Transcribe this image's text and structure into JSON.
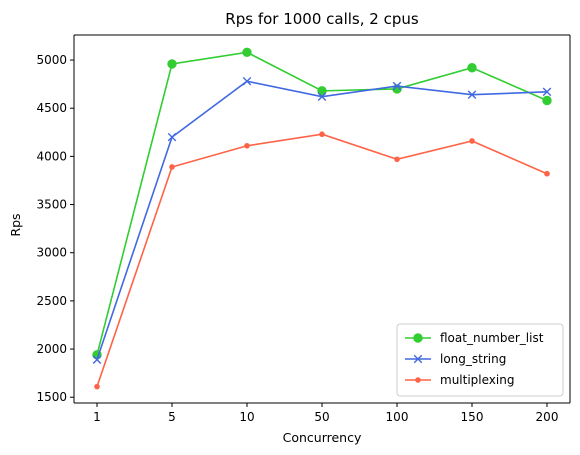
{
  "chart_data": {
    "type": "line",
    "title": "Rps for 1000 calls, 2 cpus",
    "xlabel": "Concurrency",
    "ylabel": "Rps",
    "categories": [
      "1",
      "5",
      "10",
      "50",
      "100",
      "150",
      "200"
    ],
    "ylim": [
      1440,
      5260
    ],
    "yticks": [
      1500,
      2000,
      2500,
      3000,
      3500,
      4000,
      4500,
      5000
    ],
    "legend_position": "lower-right",
    "grid": false,
    "series": [
      {
        "name": "float_number_list",
        "color": "#32cd32",
        "marker": "circle",
        "values": [
          1940,
          4960,
          5080,
          4680,
          4700,
          4920,
          4580
        ]
      },
      {
        "name": "long_string",
        "color": "#4169e1",
        "marker": "x",
        "values": [
          1890,
          4200,
          4780,
          4620,
          4730,
          4640,
          4670
        ]
      },
      {
        "name": "multiplexing",
        "color": "#ff6347",
        "marker": "dot",
        "values": [
          1610,
          3890,
          4110,
          4230,
          3970,
          4160,
          3820
        ]
      }
    ]
  }
}
